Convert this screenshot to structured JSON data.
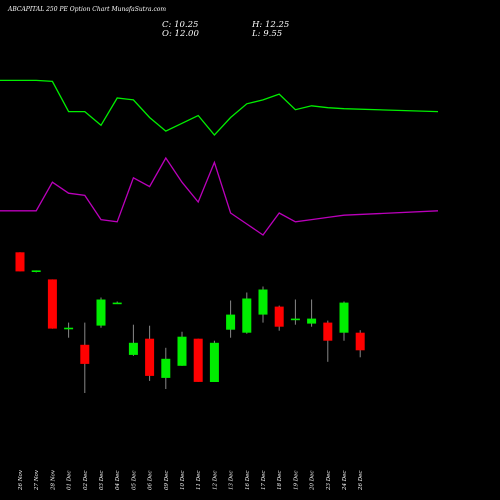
{
  "header": {
    "title": "ABCAPITAL 250 PE Option Chart MunafaSutra.com",
    "close": "C: 10.25",
    "open": "O: 12.00",
    "high": "H: 12.25",
    "low": "L: 9.55"
  },
  "colors": {
    "background": "#000000",
    "up": "#00ee00",
    "down": "#ff0000",
    "upper_line": "#00ee00",
    "lower_line": "#bb00bb",
    "text": "#ffffff"
  },
  "chart_data": {
    "type": "candlestick",
    "categories": [
      "26 Nov",
      "27 Nov",
      "28 Nov",
      "01 Dec",
      "02 Dec",
      "03 Dec",
      "04 Dec",
      "05 Dec",
      "06 Dec",
      "09 Dec",
      "10 Dec",
      "11 Dec",
      "12 Dec",
      "13 Dec",
      "16 Dec",
      "17 Dec",
      "18 Dec",
      "19 Dec",
      "20 Dec",
      "23 Dec",
      "24 Dec",
      "26 Dec"
    ],
    "candles": [
      {
        "open": 20.0,
        "high": 20.0,
        "low": 18.1,
        "close": 18.1
      },
      {
        "open": 18.2,
        "high": 18.2,
        "low": 18.0,
        "close": 18.2
      },
      {
        "open": 17.3,
        "high": 17.3,
        "low": 12.4,
        "close": 12.4
      },
      {
        "open": 12.5,
        "high": 13.0,
        "low": 11.5,
        "close": 12.5
      },
      {
        "open": 10.8,
        "high": 13.0,
        "low": 6.0,
        "close": 8.9
      },
      {
        "open": 12.7,
        "high": 15.5,
        "low": 12.5,
        "close": 15.3
      },
      {
        "open": 14.9,
        "high": 15.1,
        "low": 14.9,
        "close": 15.0
      },
      {
        "open": 9.8,
        "high": 12.8,
        "low": 9.7,
        "close": 11.0
      },
      {
        "open": 11.4,
        "high": 12.7,
        "low": 7.2,
        "close": 7.7
      },
      {
        "open": 7.5,
        "high": 10.5,
        "low": 6.4,
        "close": 9.4
      },
      {
        "open": 8.7,
        "high": 12.1,
        "low": 8.7,
        "close": 11.6
      },
      {
        "open": 11.4,
        "high": 11.4,
        "low": 7.1,
        "close": 7.1
      },
      {
        "open": 7.1,
        "high": 11.2,
        "low": 7.1,
        "close": 11.0
      },
      {
        "open": 12.3,
        "high": 15.2,
        "low": 11.5,
        "close": 13.8
      },
      {
        "open": 12.0,
        "high": 16.0,
        "low": 11.9,
        "close": 15.4
      },
      {
        "open": 13.8,
        "high": 16.6,
        "low": 13.0,
        "close": 16.3
      },
      {
        "open": 14.6,
        "high": 14.7,
        "low": 12.2,
        "close": 12.6
      },
      {
        "open": 13.4,
        "high": 15.3,
        "low": 12.8,
        "close": 13.4
      },
      {
        "open": 12.9,
        "high": 15.3,
        "low": 12.6,
        "close": 13.4
      },
      {
        "open": 13.0,
        "high": 13.2,
        "low": 9.1,
        "close": 11.2
      },
      {
        "open": 12.0,
        "high": 15.1,
        "low": 11.2,
        "close": 15.0
      },
      {
        "open": 12.0,
        "high": 12.25,
        "low": 9.55,
        "close": 10.25
      }
    ],
    "upper_line": [
      94,
      94,
      93.5,
      78,
      78,
      71,
      85,
      84,
      75,
      68,
      72,
      76,
      66,
      75,
      82,
      84,
      87,
      79,
      81,
      80,
      79.5,
      78
    ],
    "lower_line": [
      18,
      18,
      31,
      26,
      25,
      14,
      13,
      33,
      29,
      42,
      31,
      22,
      40,
      17,
      12,
      7,
      17,
      13,
      14,
      15,
      16,
      18
    ],
    "grid": false,
    "legend": "none"
  }
}
